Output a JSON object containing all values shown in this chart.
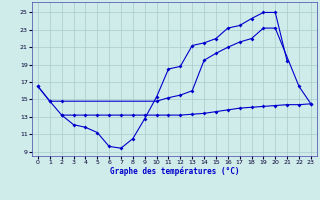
{
  "title": "Graphe des températures (°C)",
  "bg_color": "#d0ecea",
  "grid_color": "#aacccc",
  "line_color": "#0000cc",
  "tick_color": "#000033",
  "xlim": [
    -0.5,
    23.5
  ],
  "ylim": [
    8.5,
    26.2
  ],
  "yticks": [
    9,
    11,
    13,
    15,
    17,
    19,
    21,
    23,
    25
  ],
  "xticks": [
    0,
    1,
    2,
    3,
    4,
    5,
    6,
    7,
    8,
    9,
    10,
    11,
    12,
    13,
    14,
    15,
    16,
    17,
    18,
    19,
    20,
    21,
    22,
    23
  ],
  "series1_x": [
    0,
    1,
    2,
    3,
    4,
    5,
    6,
    7,
    8,
    9,
    10,
    11,
    12,
    13,
    14,
    15,
    16,
    17,
    18,
    19,
    20,
    21
  ],
  "series1_y": [
    16.5,
    14.8,
    13.2,
    12.1,
    11.8,
    11.2,
    9.6,
    9.4,
    10.5,
    12.8,
    15.3,
    18.5,
    18.8,
    21.2,
    21.5,
    22.0,
    23.2,
    23.5,
    24.3,
    25.0,
    25.0,
    19.4
  ],
  "series2_x": [
    0,
    1,
    2,
    10,
    11,
    12,
    13,
    14,
    15,
    16,
    17,
    18,
    19,
    20,
    22,
    23
  ],
  "series2_y": [
    16.5,
    14.8,
    14.8,
    14.8,
    15.2,
    15.5,
    16.0,
    19.5,
    20.3,
    21.0,
    21.6,
    22.0,
    23.2,
    23.2,
    16.5,
    14.5
  ],
  "series3_x": [
    2,
    3,
    4,
    5,
    6,
    7,
    8,
    9,
    10,
    11,
    12,
    13,
    14,
    15,
    16,
    17,
    18,
    19,
    20,
    21,
    22,
    23
  ],
  "series3_y": [
    13.2,
    13.2,
    13.2,
    13.2,
    13.2,
    13.2,
    13.2,
    13.2,
    13.2,
    13.2,
    13.2,
    13.3,
    13.4,
    13.6,
    13.8,
    14.0,
    14.1,
    14.2,
    14.3,
    14.4,
    14.4,
    14.5
  ]
}
